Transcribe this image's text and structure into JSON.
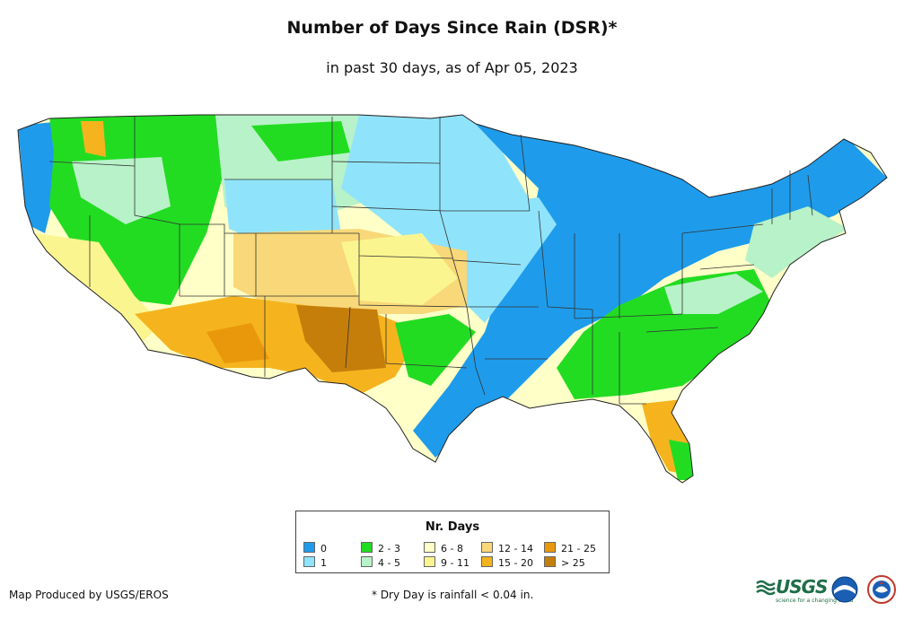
{
  "title": "Number of Days Since Rain (DSR)*",
  "subtitle": "in past 30 days, as of Apr 05, 2023",
  "legend": {
    "title": "Nr. Days",
    "items": [
      {
        "label": "0",
        "color": "#1e9ceb"
      },
      {
        "label": "1",
        "color": "#8fe4fb"
      },
      {
        "label": "2 - 3",
        "color": "#22dc22"
      },
      {
        "label": "4 - 5",
        "color": "#b8f2c8"
      },
      {
        "label": "6 - 8",
        "color": "#ffffc8"
      },
      {
        "label": "9 - 11",
        "color": "#fbf590"
      },
      {
        "label": "12 - 14",
        "color": "#f8d878"
      },
      {
        "label": "15 - 20",
        "color": "#f5b41e"
      },
      {
        "label": "21 - 25",
        "color": "#e9980c"
      },
      {
        "label": "> 25",
        "color": "#c67e0a"
      }
    ]
  },
  "credit": "Map Produced by USGS/EROS",
  "footnote": "* Dry Day is rainfall < 0.04 in.",
  "logos": {
    "usgs": "USGS",
    "usgs_tagline": "science for a changing world",
    "icons": [
      "usgs-logo",
      "noaa-logo",
      "nws-logo"
    ]
  }
}
